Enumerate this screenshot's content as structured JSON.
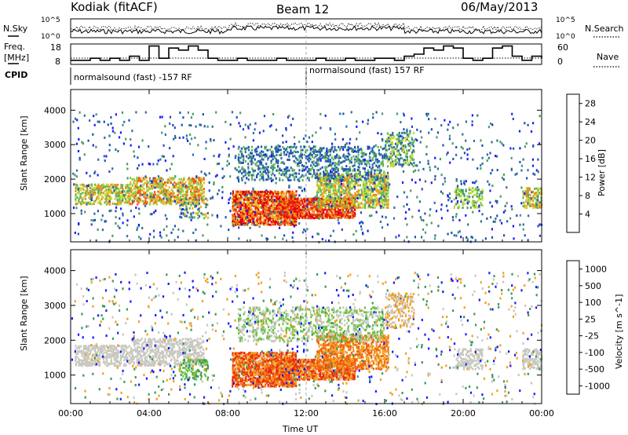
{
  "header": {
    "station": "Kodiak (fitACF)",
    "beam": "Beam 12",
    "date": "06/May/2013"
  },
  "left_labels": {
    "nsky": "N.Sky",
    "freq_line1": "Freq.",
    "freq_line2": "[MHz]",
    "cpid": "CPID"
  },
  "right_labels": {
    "nsearch": "N.Search",
    "nave": "Nave"
  },
  "cpid_segments": [
    "normalsound (fast) -157 RF",
    "normalsound (fast) 157 RF"
  ],
  "chart_data": [
    {
      "type": "line",
      "id": "noise",
      "y_left_ticks": [
        "10^5",
        "10^0"
      ],
      "y_right_ticks": [
        "10^5",
        "10^0"
      ],
      "y_scale": "log",
      "series": [
        {
          "name": "N.Sky",
          "style": "solid"
        },
        {
          "name": "N.Search",
          "style": "dotted"
        }
      ]
    },
    {
      "type": "line",
      "id": "freq",
      "y_left_ticks": [
        "18",
        "8"
      ],
      "y_right_ticks": [
        "60",
        "0"
      ],
      "series": [
        {
          "name": "Freq",
          "style": "solid",
          "x": [
            0,
            0.5,
            1,
            1.5,
            2,
            2.5,
            3,
            3.5,
            4,
            4.5,
            5,
            5.5,
            6,
            6.5,
            7,
            7.5,
            8,
            8.5,
            9,
            9.5,
            10,
            10.5,
            11,
            11.5,
            12,
            12.5,
            13,
            13.5,
            14,
            14.5,
            15,
            15.5,
            16,
            16.5,
            17,
            17.5,
            18,
            18.5,
            19,
            19.5,
            20,
            20.5,
            21,
            21.5,
            22,
            22.5,
            23,
            23.5,
            24
          ],
          "values": [
            10,
            10,
            11,
            10,
            11,
            10,
            12,
            10,
            17,
            11,
            16,
            15,
            17,
            15,
            11,
            10,
            10,
            11,
            10,
            10,
            10,
            11,
            10,
            10,
            10,
            11,
            10,
            10,
            11,
            10,
            10,
            11,
            11,
            10,
            12,
            13,
            16,
            15,
            17,
            16,
            11,
            10,
            11,
            16,
            17,
            12,
            10,
            12,
            11
          ]
        },
        {
          "name": "Nave",
          "style": "dotted"
        }
      ]
    },
    {
      "type": "heatmap",
      "id": "power",
      "ylabel": "Slant Range [km]",
      "yticks": [
        1000,
        2000,
        3000,
        4000
      ],
      "ylim": [
        180,
        4600
      ],
      "xlim": [
        0,
        24
      ],
      "colorbar_label": "Power [dB]",
      "colorbar_ticks": [
        4,
        8,
        12,
        16,
        20,
        24,
        28
      ],
      "colorbar_range": [
        0,
        30
      ]
    },
    {
      "type": "heatmap",
      "id": "velocity",
      "ylabel": "Slant Range [km]",
      "yticks": [
        1000,
        2000,
        3000,
        4000
      ],
      "ylim": [
        180,
        4600
      ],
      "xlim": [
        0,
        24
      ],
      "xlabel": "Time UT",
      "xticks": [
        "00:00",
        "04:00",
        "08:00",
        "12:00",
        "16:00",
        "20:00",
        "00:00"
      ],
      "colorbar_label": "Velocity [m s^-1]",
      "colorbar_ticks": [
        1000,
        500,
        100,
        25,
        -25,
        -100,
        -500,
        -1000
      ]
    }
  ],
  "colors": {
    "power_scale": [
      "#1a1aff",
      "#1f4fb8",
      "#2d6e9e",
      "#4a9a6a",
      "#5fb65a",
      "#88cc44",
      "#c8d82c",
      "#e8b820",
      "#f08a18",
      "#f05a14",
      "#ee2a10",
      "#e00000"
    ],
    "velocity_scale": [
      "#1a1aff",
      "#1f5fb8",
      "#3a9a5a",
      "#66c23a",
      "#c8c8c0",
      "#c8c8c0",
      "#f0a020",
      "#f06010",
      "#e82a10",
      "#e00000"
    ]
  }
}
